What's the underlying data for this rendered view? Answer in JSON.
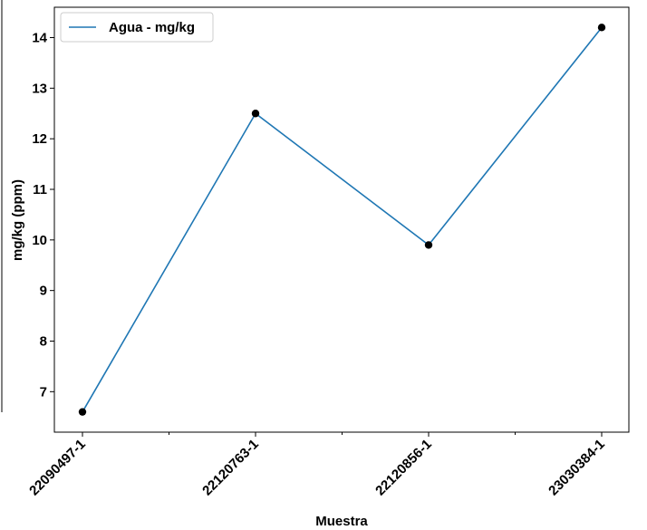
{
  "chart_data": {
    "type": "line",
    "categories": [
      "22090497-1",
      "22120763-1",
      "22120856-1",
      "23030384-1"
    ],
    "series": [
      {
        "name": "Agua - mg/kg",
        "values": [
          6.6,
          12.5,
          9.9,
          14.2
        ]
      }
    ],
    "xlabel": "Muestra",
    "ylabel": "mg/kg (ppm)",
    "yticks": [
      7,
      8,
      9,
      10,
      11,
      12,
      13,
      14
    ],
    "ylim": [
      6.2,
      14.6
    ],
    "grid": false,
    "legend_position": "top-left",
    "line_color": "#1f77b4",
    "marker_color": "#000000"
  }
}
